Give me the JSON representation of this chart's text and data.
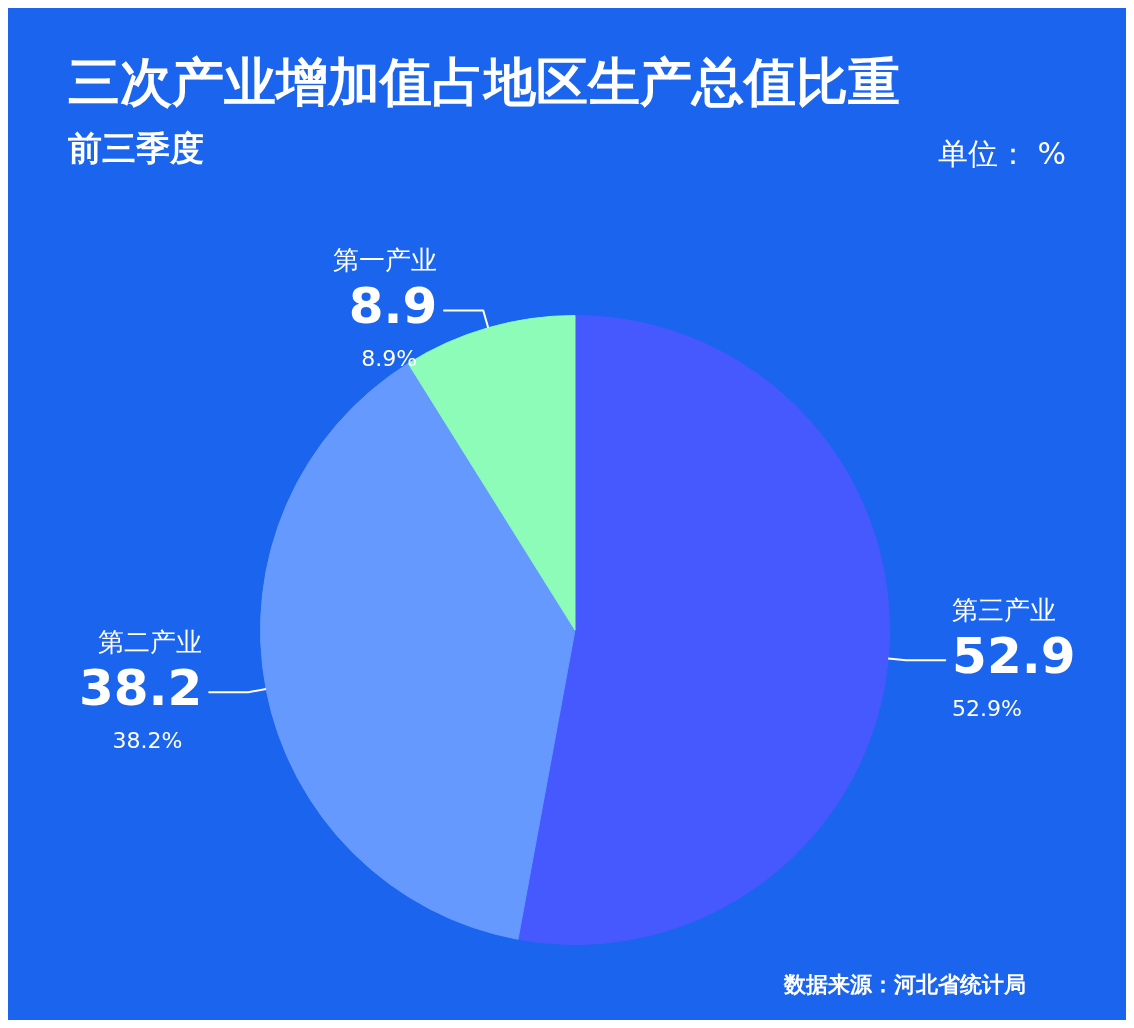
{
  "chart_data": {
    "type": "pie",
    "title": "三次产业增加值占地区生产总值比重",
    "subtitle": "前三季度",
    "categories": [
      "第三产业",
      "第二产业",
      "第一产业"
    ],
    "values": [
      52.9,
      38.2,
      8.9
    ],
    "colors": [
      "#4659fe",
      "#6699fe",
      "#8cfcb8"
    ],
    "value_labels": [
      "52.9",
      "38.2",
      "8.9"
    ],
    "annotations": [
      "单位： %",
      "数据来源：河北省统计局",
      {
        "text": "52.9%",
        "x": "第三产业"
      },
      {
        "text": "38.2%",
        "x": "第二产业"
      },
      {
        "text": "8.9%",
        "x": "第一产业"
      }
    ],
    "legend": false
  }
}
